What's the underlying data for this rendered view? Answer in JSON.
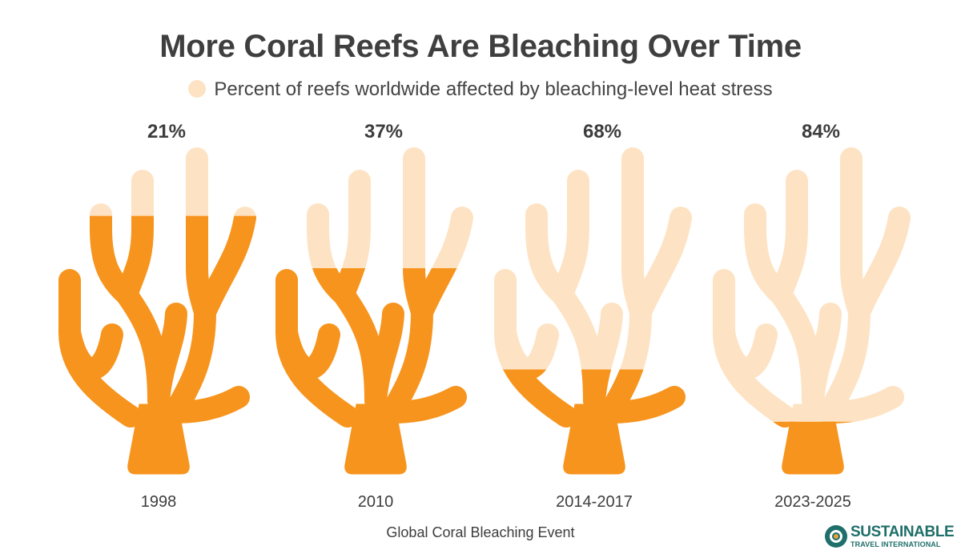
{
  "chart_data": {
    "type": "bar",
    "title": "More Coral Reefs Are Bleaching Over Time",
    "legend": {
      "label": "Percent of reefs worldwide affected by bleaching-level heat stress",
      "placement": "top-center"
    },
    "xlabel": "Global Coral Bleaching Event",
    "categories": [
      "1998",
      "2010",
      "2014-2017",
      "2023-2025"
    ],
    "values": [
      21,
      37,
      68,
      84
    ],
    "value_labels": [
      "21%",
      "37%",
      "68%",
      "84%"
    ],
    "ylim": [
      0,
      100
    ],
    "colors": {
      "healthy": "#f7941d",
      "bleached": "#fde3c4"
    }
  },
  "brand": {
    "name_line1": "SUSTAINABLE",
    "name_line2": "TRAVEL INTERNATIONAL",
    "color": "#1f6f6a"
  }
}
